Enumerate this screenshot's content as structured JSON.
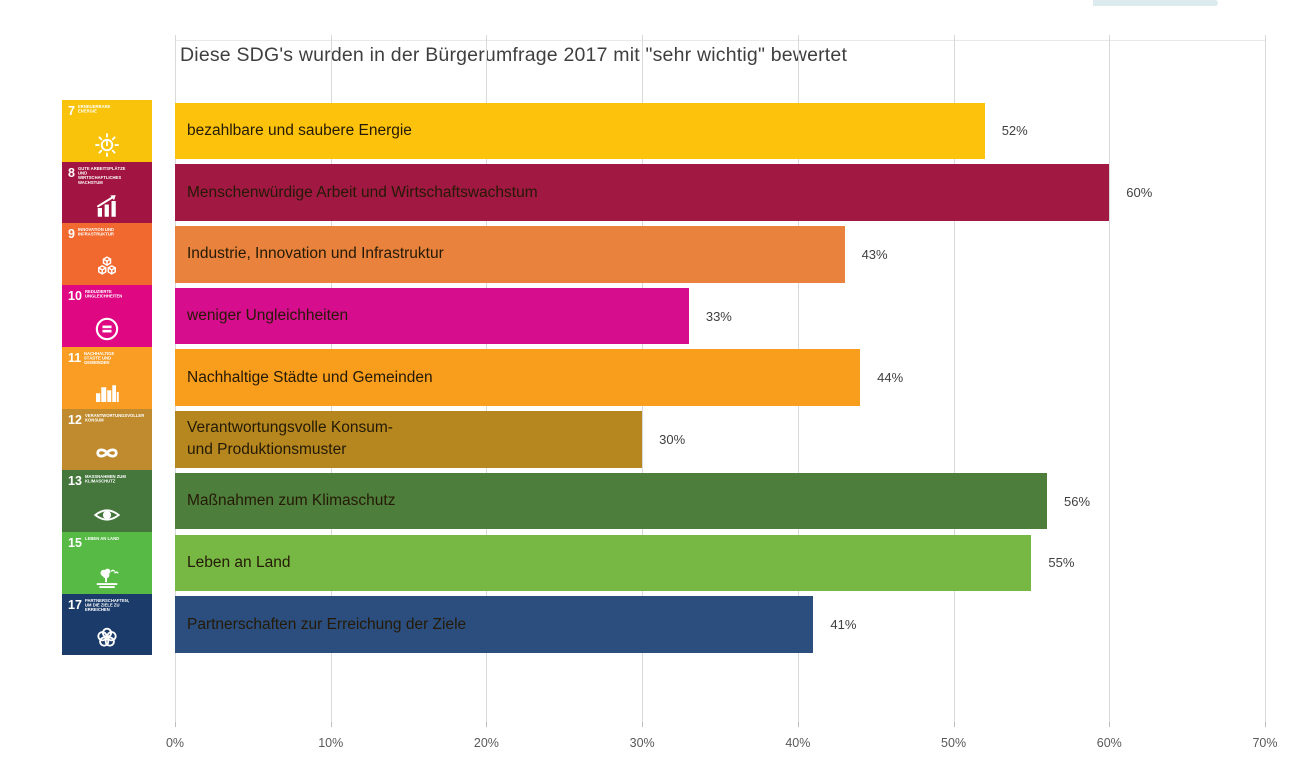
{
  "artifact_strip": {
    "color": "#dcebee"
  },
  "chart_data": {
    "type": "bar",
    "orientation": "horizontal",
    "title": "Diese SDG's wurden in der Bürgerumfrage 2017 mit \"sehr wichtig\" bewertet",
    "xlabel": "",
    "ylabel": "",
    "xlim": [
      0,
      70
    ],
    "grid": true,
    "x_tick_values": [
      0,
      10,
      20,
      30,
      40,
      50,
      60,
      70
    ],
    "x_tick_labels": [
      "0%",
      "10%",
      "20%",
      "30%",
      "40%",
      "50%",
      "60%",
      "70%"
    ],
    "bars": [
      {
        "sdg_number": "7",
        "tile_caption": "Erneuerbare Energie",
        "icon": "sun-power-icon",
        "label_lines": [
          "bezahlbare und saubere Energie"
        ],
        "value": 52,
        "value_label": "52%",
        "bar_color": "#fcc20c",
        "tile_color": "#f8c30a"
      },
      {
        "sdg_number": "8",
        "tile_caption": "Gute Arbeitsplätze und wirtschaftliches Wachstum",
        "icon": "growth-chart-icon",
        "label_lines": [
          "Menschenwürdige Arbeit und Wirtschaftswachstum"
        ],
        "value": 60,
        "value_label": "60%",
        "bar_color": "#a11842",
        "tile_color": "#a21441"
      },
      {
        "sdg_number": "9",
        "tile_caption": "Innovation und Infrastruktur",
        "icon": "cubes-icon",
        "label_lines": [
          "Industrie, Innovation und Infrastruktur"
        ],
        "value": 43,
        "value_label": "43%",
        "bar_color": "#e8823c",
        "tile_color": "#f1692e"
      },
      {
        "sdg_number": "10",
        "tile_caption": "Reduzierte Ungleichheiten",
        "icon": "equality-icon",
        "label_lines": [
          "weniger Ungleichheiten"
        ],
        "value": 33,
        "value_label": "33%",
        "bar_color": "#d60d8c",
        "tile_color": "#e00783"
      },
      {
        "sdg_number": "11",
        "tile_caption": "Nachhaltige Städte und Gemeinden",
        "icon": "city-icon",
        "label_lines": [
          "Nachhaltige Städte und Gemeinden"
        ],
        "value": 44,
        "value_label": "44%",
        "bar_color": "#f99d1c",
        "tile_color": "#f99d25"
      },
      {
        "sdg_number": "12",
        "tile_caption": "Verantwortungsvoller Konsum",
        "icon": "infinity-loop-icon",
        "label_lines": [
          "Verantwortungsvolle Konsum-",
          "und Produktionsmuster"
        ],
        "value": 30,
        "value_label": "30%",
        "bar_color": "#b5871e",
        "tile_color": "#bf8b2e"
      },
      {
        "sdg_number": "13",
        "tile_caption": "Maßnahmen zum Klimaschutz",
        "icon": "eye-globe-icon",
        "label_lines": [
          "Maßnahmen zum Klimaschutz"
        ],
        "value": 56,
        "value_label": "56%",
        "bar_color": "#4e7e3b",
        "tile_color": "#45773d"
      },
      {
        "sdg_number": "15",
        "tile_caption": "Leben an Land",
        "icon": "tree-land-icon",
        "label_lines": [
          "Leben an Land"
        ],
        "value": 55,
        "value_label": "55%",
        "bar_color": "#76b843",
        "tile_color": "#56ba45"
      },
      {
        "sdg_number": "17",
        "tile_caption": "Partnerschaften, um die Ziele zu erreichen",
        "icon": "flower-circles-icon",
        "label_lines": [
          "Partnerschaften zur Erreichung der Ziele"
        ],
        "value": 41,
        "value_label": "41%",
        "bar_color": "#2c4e7f",
        "tile_color": "#1b3c6b"
      }
    ]
  }
}
